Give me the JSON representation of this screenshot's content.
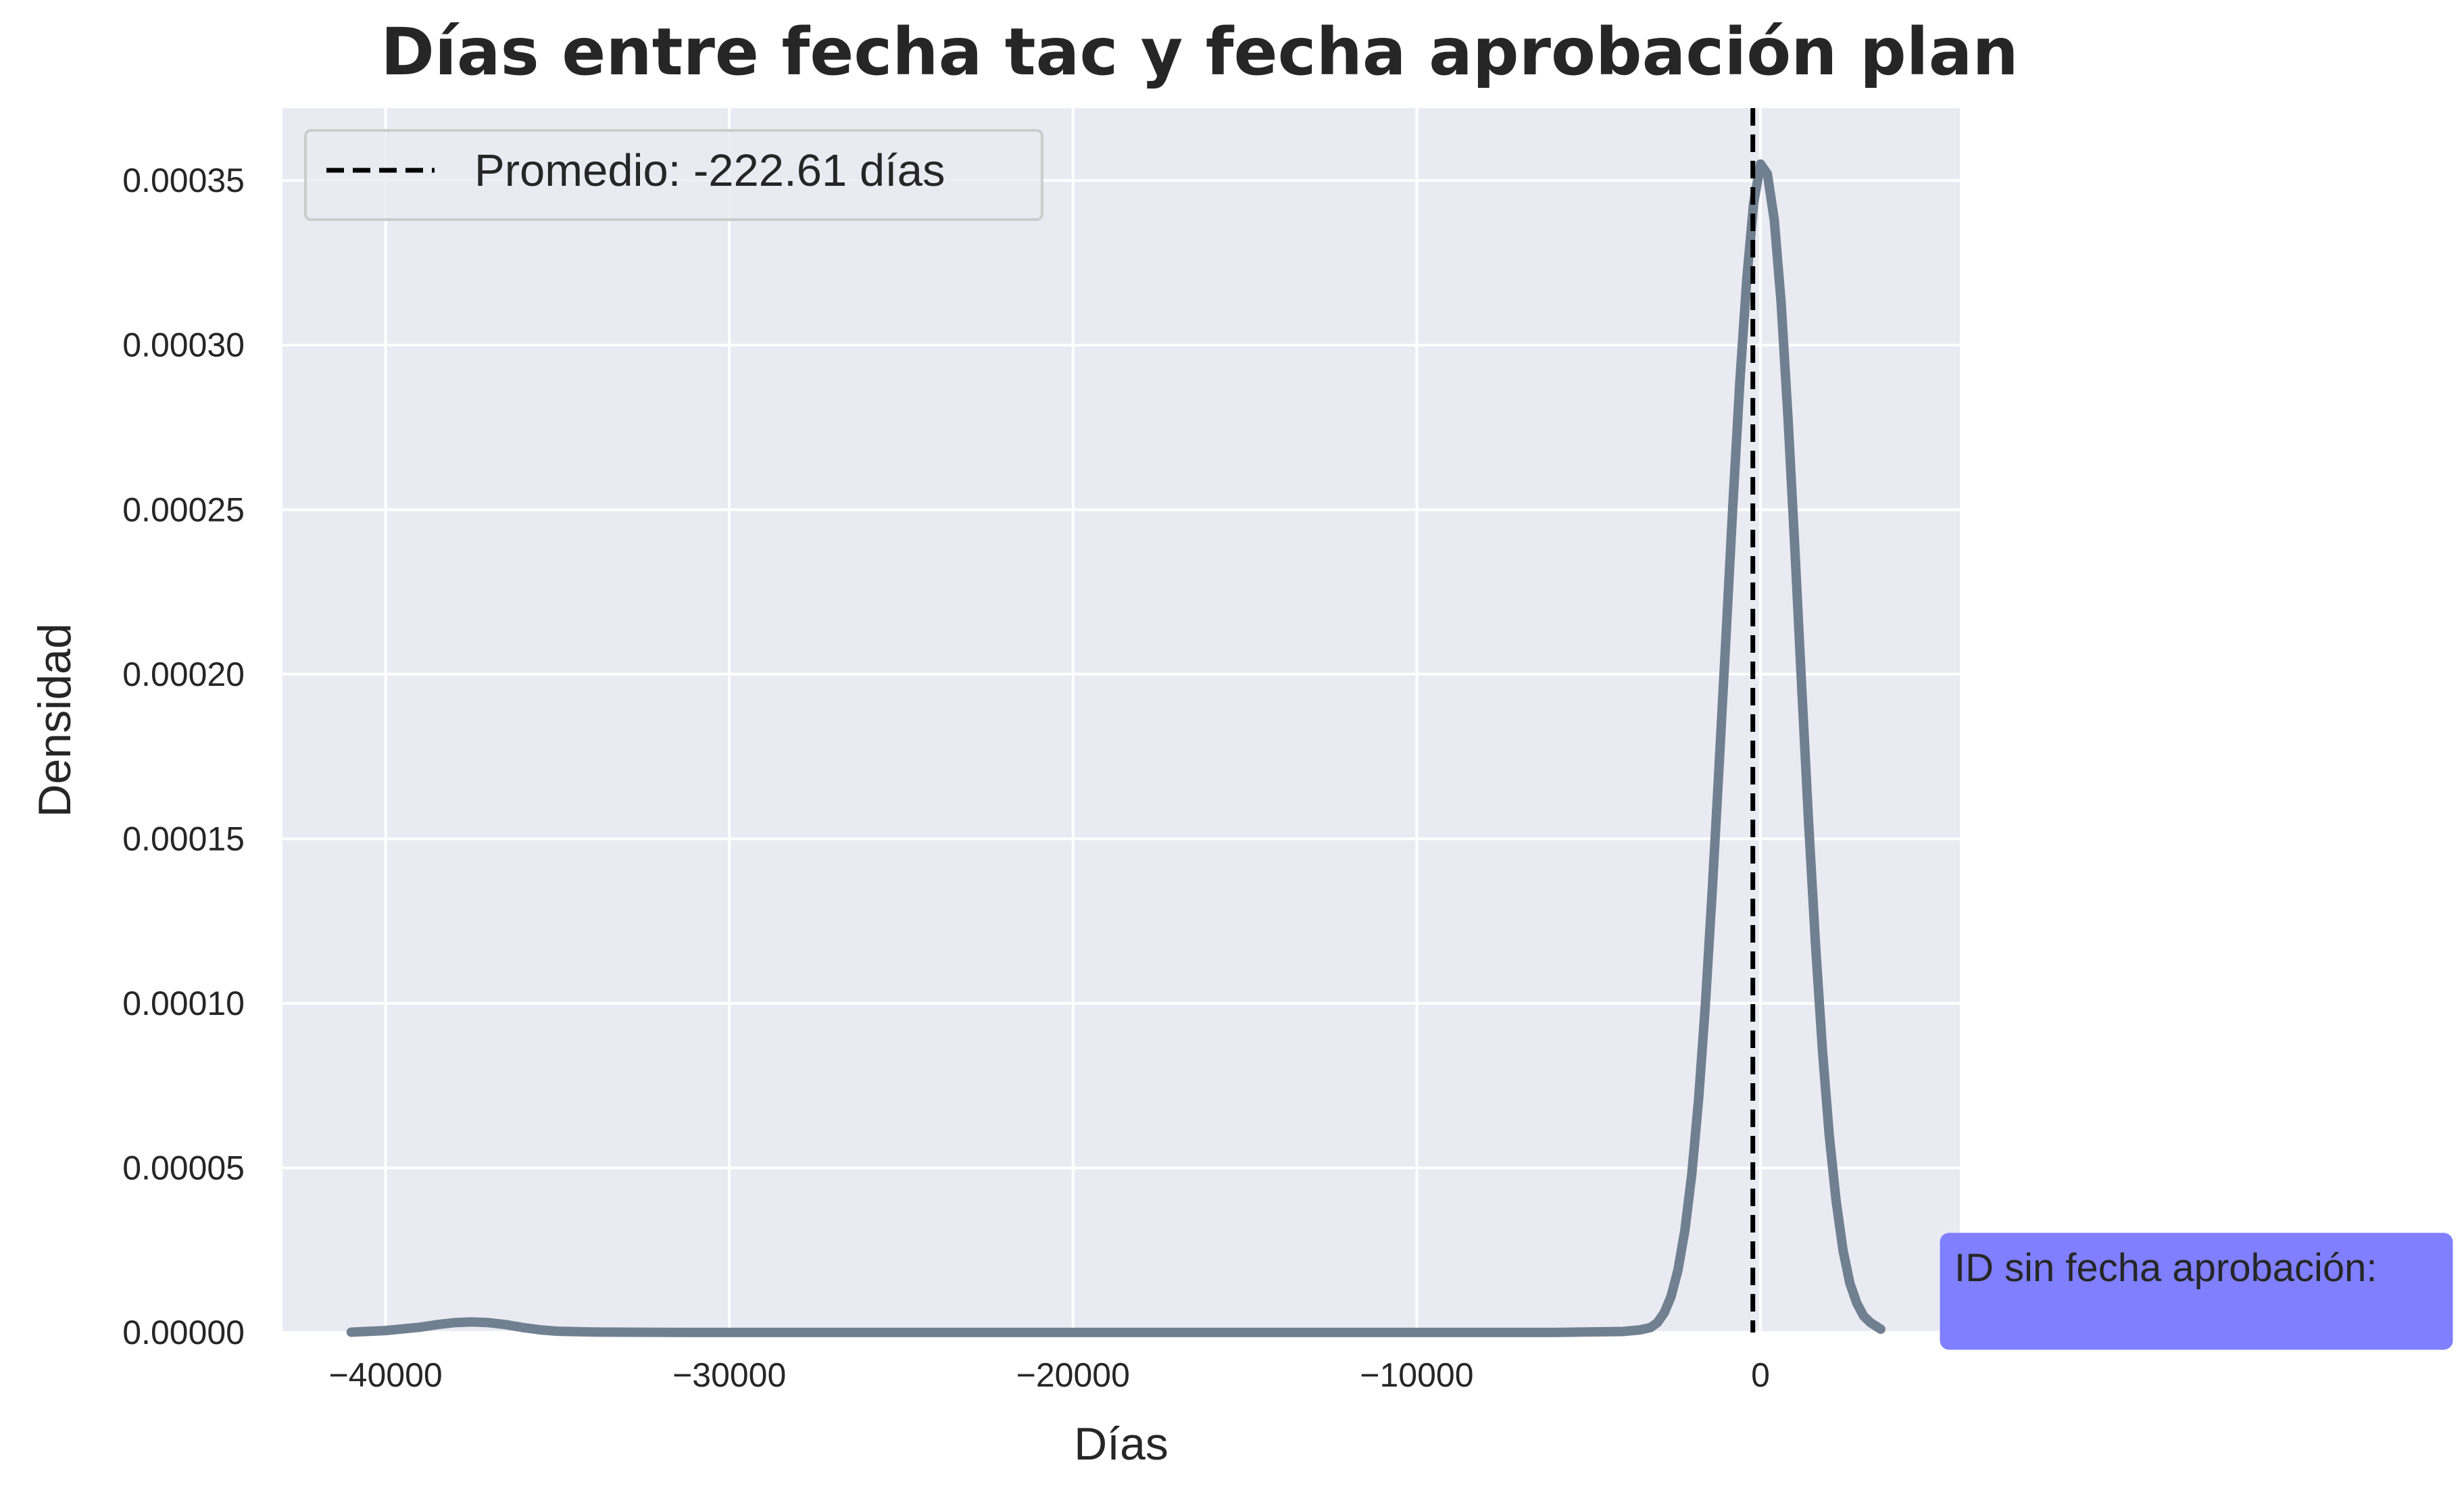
{
  "chart_data": {
    "type": "line",
    "title": "Días entre fecha tac y fecha aprobación plan",
    "xlabel": "Días",
    "ylabel": "Densidad",
    "xlim": [
      -43000,
      5800
    ],
    "ylim": [
      0,
      0.000372
    ],
    "xticks": [
      -40000,
      -30000,
      -20000,
      -10000,
      0
    ],
    "xtick_labels": [
      "−40000",
      "−30000",
      "−20000",
      "−10000",
      "0"
    ],
    "yticks": [
      0,
      5e-05,
      0.0001,
      0.00015,
      0.0002,
      0.00025,
      0.0003,
      0.00035
    ],
    "ytick_labels": [
      "0.00000",
      "0.00005",
      "0.00010",
      "0.00015",
      "0.00020",
      "0.00025",
      "0.00030",
      "0.00035"
    ],
    "grid": true,
    "background": "#eaeaf2",
    "series": [
      {
        "color": "#708090",
        "x": [
          -41000,
          -40000,
          -39000,
          -38500,
          -38000,
          -37500,
          -37000,
          -36500,
          -36000,
          -35500,
          -35000,
          -34000,
          -32000,
          -28000,
          -20000,
          -12000,
          -6000,
          -4000,
          -3500,
          -3200,
          -3000,
          -2800,
          -2600,
          -2400,
          -2200,
          -2000,
          -1800,
          -1600,
          -1400,
          -1200,
          -1000,
          -800,
          -600,
          -400,
          -200,
          0,
          200,
          400,
          600,
          800,
          1000,
          1200,
          1400,
          1600,
          1800,
          2000,
          2200,
          2400,
          2600,
          2800,
          3000,
          3200,
          3500
        ],
        "y": [
          1e-07,
          6e-07,
          1.6e-06,
          2.4e-06,
          3e-06,
          3.2e-06,
          3e-06,
          2.4e-06,
          1.5e-06,
          8e-07,
          4e-07,
          1.5e-07,
          5e-08,
          2e-08,
          2e-08,
          2e-08,
          3e-08,
          3e-07,
          8e-07,
          1.5e-06,
          3e-06,
          6e-06,
          1.1e-05,
          1.9e-05,
          3.1e-05,
          4.8e-05,
          7.1e-05,
          0.0001,
          0.000135,
          0.000173,
          0.000212,
          0.000252,
          0.000289,
          0.00032,
          0.000343,
          0.000355,
          0.000352,
          0.000338,
          0.000313,
          0.000278,
          0.000238,
          0.000196,
          0.000155,
          0.000118,
          8.6e-05,
          6e-05,
          4e-05,
          2.5e-05,
          1.5e-05,
          9e-06,
          5e-06,
          3e-06,
          1e-06
        ]
      }
    ],
    "mean_line": {
      "x": -222.61,
      "color": "#000000",
      "style": "dashed"
    },
    "legend": {
      "position": "top-left",
      "entries": [
        {
          "label": "Promedio: -222.61 días",
          "style": "dashed",
          "color": "#000000"
        }
      ]
    },
    "annotation": {
      "text": "ID sin fecha aprobación:",
      "position": "right",
      "box_color": "#7f7fff"
    }
  }
}
